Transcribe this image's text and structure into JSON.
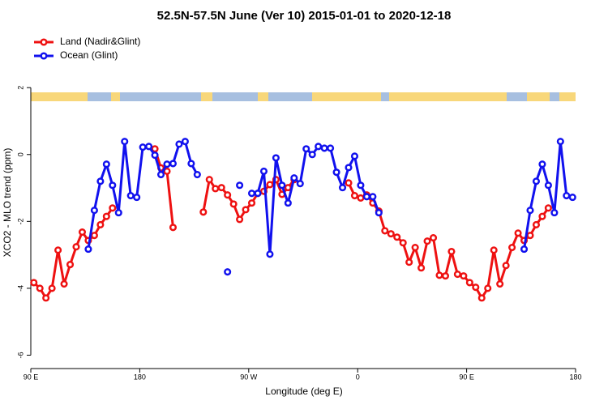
{
  "chart_data": {
    "type": "line",
    "title": "52.5N-57.5N June (Ver 10)   2015-01-01 to 2020-12-18",
    "x_label": "Longitude (deg E)",
    "y_label": "XCO2 - MLO trend (ppm)",
    "x": [
      92.5,
      97.5,
      102.5,
      107.5,
      112.5,
      117.5,
      122.5,
      127.5,
      132.5,
      137.5,
      142.5,
      147.5,
      152.5,
      157.5,
      162.5,
      167.5,
      172.5,
      177.5,
      182.5,
      187.5,
      192.5,
      197.5,
      202.5,
      207.5,
      212.5,
      217.5,
      222.5,
      227.5,
      232.5,
      237.5,
      242.5,
      247.5,
      252.5,
      257.5,
      262.5,
      267.5,
      272.5,
      277.5,
      282.5,
      287.5,
      292.5,
      297.5,
      302.5,
      307.5,
      312.5,
      317.5,
      322.5,
      327.5,
      332.5,
      337.5,
      342.5,
      347.5,
      352.5,
      357.5,
      362.5,
      367.5,
      372.5,
      377.5,
      382.5,
      387.5,
      392.5,
      397.5,
      402.5,
      407.5,
      412.5,
      417.5,
      422.5,
      427.5,
      432.5,
      437.5,
      442.5,
      447.5,
      452.5,
      457.5,
      462.5,
      467.5,
      472.5,
      477.5,
      482.5,
      487.5,
      492.5,
      497.5,
      502.5,
      507.5,
      512.5,
      517.5,
      522.5,
      527.5,
      532.5,
      537.5
    ],
    "series": [
      {
        "name": "Land (Nadir&Glint)",
        "color": "#ee1111",
        "values": [
          -3.83,
          -4.0,
          -4.29,
          -4.0,
          -2.86,
          -3.87,
          -3.29,
          -2.76,
          -2.32,
          -2.57,
          -2.42,
          -2.1,
          -1.85,
          -1.6,
          null,
          null,
          null,
          null,
          null,
          null,
          0.17,
          -0.4,
          -0.5,
          -2.18,
          null,
          null,
          null,
          null,
          -1.72,
          -0.75,
          -1.02,
          -0.99,
          -1.21,
          -1.48,
          -1.94,
          -1.65,
          -1.45,
          -1.16,
          -1.1,
          -0.9,
          -0.75,
          -1.19,
          -0.99,
          -0.75,
          null,
          null,
          null,
          null,
          null,
          null,
          null,
          null,
          -0.85,
          -1.23,
          -1.3,
          -1.21,
          -1.45,
          -1.69,
          -2.28,
          -2.37,
          -2.47,
          -2.64,
          -3.22,
          -2.78,
          -3.39,
          -2.59,
          -2.49,
          -3.61,
          -3.63,
          -2.9,
          -3.58,
          -3.63,
          -3.83,
          -3.97,
          -4.29,
          -4.0,
          -2.86,
          -3.87,
          -3.32,
          -2.78,
          -2.35,
          -2.57,
          -2.42,
          -2.1,
          -1.85,
          -1.6,
          null,
          null,
          null,
          null
        ]
      },
      {
        "name": "Ocean (Glint)",
        "color": "#1111ee",
        "values": [
          null,
          null,
          null,
          null,
          null,
          null,
          null,
          null,
          null,
          -2.83,
          -1.67,
          -0.8,
          -0.29,
          -0.92,
          -1.74,
          0.39,
          -1.23,
          -1.28,
          0.22,
          0.24,
          -0.02,
          -0.6,
          -0.29,
          -0.27,
          0.31,
          0.39,
          -0.27,
          -0.6,
          null,
          null,
          null,
          null,
          -3.51,
          null,
          -0.92,
          null,
          -1.16,
          -1.16,
          -0.5,
          -2.98,
          -0.1,
          -0.92,
          -1.45,
          -0.7,
          -0.87,
          0.17,
          0,
          0.24,
          0.19,
          0.19,
          -0.53,
          -0.99,
          -0.39,
          -0.05,
          -0.92,
          -1.26,
          -1.26,
          -1.74,
          null,
          null,
          null,
          null,
          null,
          null,
          null,
          null,
          null,
          null,
          null,
          null,
          null,
          null,
          null,
          null,
          null,
          null,
          null,
          null,
          null,
          null,
          null,
          -2.83,
          -1.67,
          -0.8,
          -0.29,
          -0.92,
          -1.74,
          0.39,
          -1.23,
          -1.28
        ]
      }
    ],
    "xlim": [
      90,
      540
    ],
    "xticks": [
      {
        "value": 90,
        "label": "90 E"
      },
      180,
      {
        "value": 270,
        "label": "90 W"
      },
      {
        "value": 360,
        "label": "0"
      },
      {
        "value": 450,
        "label": "90 E"
      },
      {
        "value": 540,
        "label": "180"
      }
    ],
    "ylim": [
      -6.4,
      3.7
    ],
    "yticks": [
      -6,
      -4,
      -2,
      0,
      2
    ],
    "legend": "top-left"
  }
}
